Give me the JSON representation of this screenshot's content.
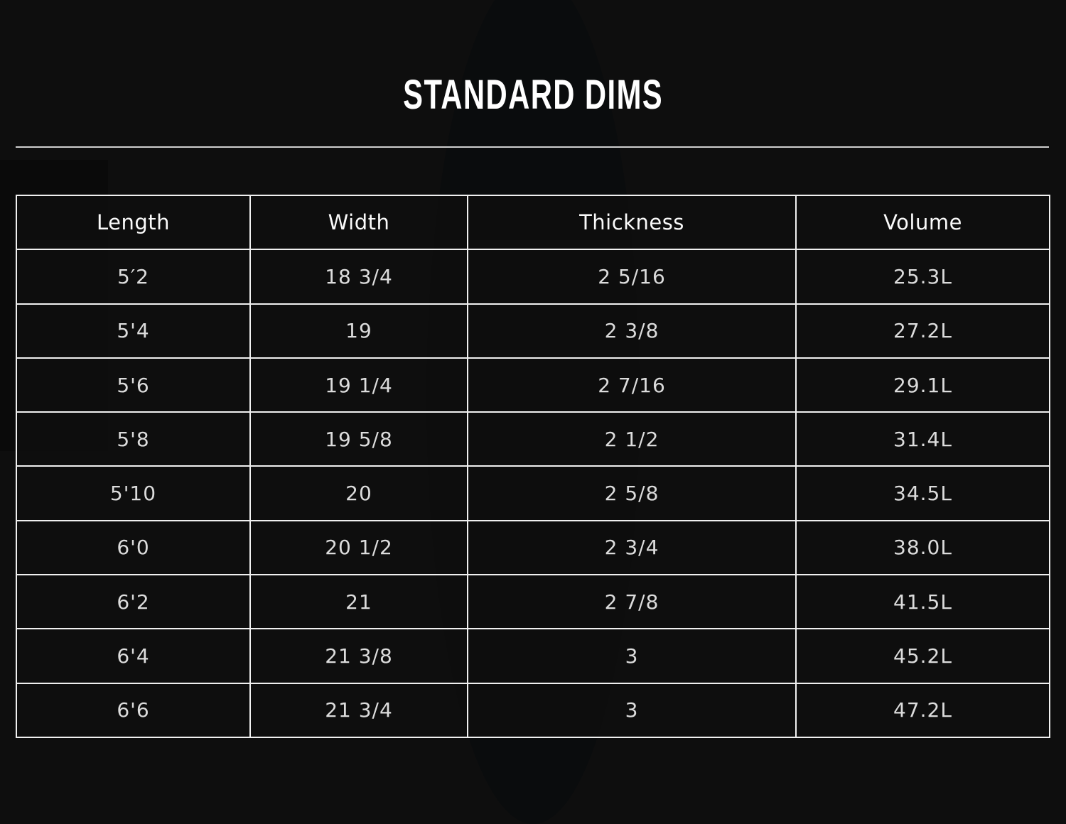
{
  "title": "STANDARD DIMS",
  "table": {
    "headers": [
      "Length",
      "Width",
      "Thickness",
      "Volume"
    ],
    "rows": [
      [
        "5′2",
        "18 3/4",
        "2 5/16",
        "25.3L"
      ],
      [
        "5'4",
        "19",
        "2 3/8",
        "27.2L"
      ],
      [
        "5'6",
        "19 1/4",
        "2 7/16",
        "29.1L"
      ],
      [
        "5'8",
        "19 5/8",
        "2 1/2",
        "31.4L"
      ],
      [
        "5'10",
        "20",
        "2 5/8",
        "34.5L"
      ],
      [
        "6'0",
        "20 1/2",
        "2 3/4",
        "38.0L"
      ],
      [
        "6'2",
        "21",
        "2 7/8",
        "41.5L"
      ],
      [
        "6'4",
        "21 3/8",
        "3",
        "45.2L"
      ],
      [
        "6'6",
        "21 3/4",
        "3",
        "47.2L"
      ]
    ]
  }
}
